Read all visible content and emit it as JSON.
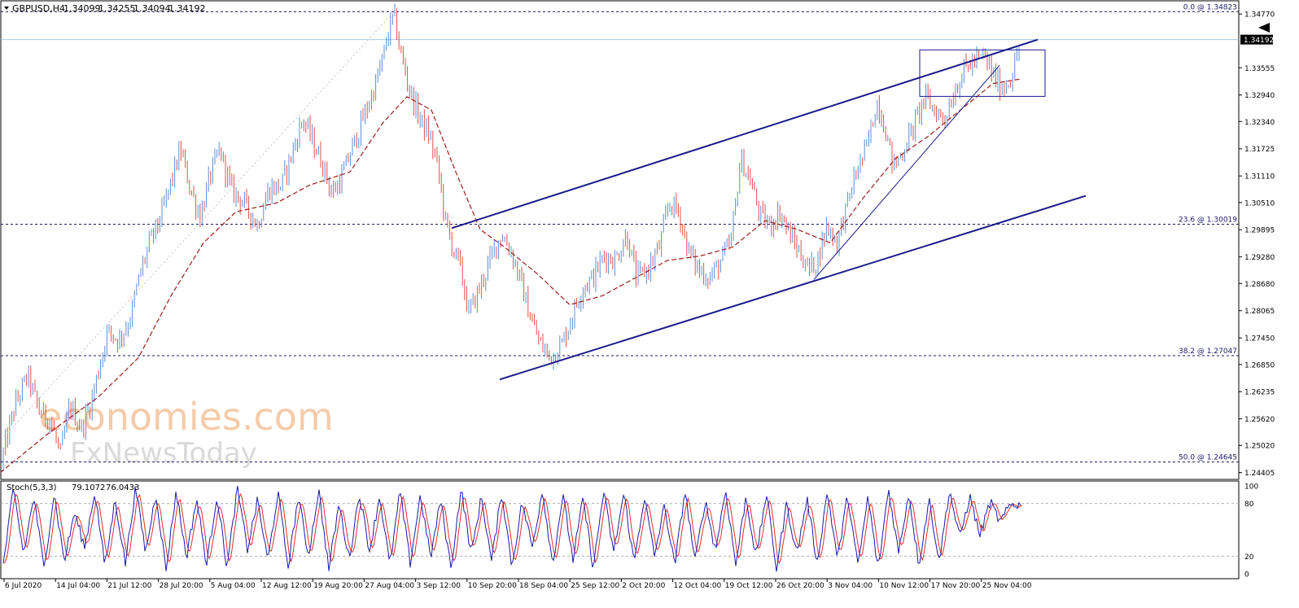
{
  "header": {
    "symbol": "GBPUSD,H4",
    "open": "1.34099",
    "high": "1.34255",
    "low": "1.34094",
    "close": "1.34192"
  },
  "indicator": {
    "name": "Stoch(5,3,3)",
    "k_value": "79.1072",
    "d_value": "76.0433",
    "levels": [
      "100",
      "80",
      "20",
      "0"
    ]
  },
  "watermark": {
    "line1": "economies.com",
    "line2": "FxNewsToday"
  },
  "colors": {
    "bull_candle": "#5b8fd6",
    "bear_candle": "#e0504f",
    "moving_average": "#9c1c1c",
    "trend_lines": "#1a1a8c",
    "fib_levels": "#1a1a66",
    "stoch_k": "#1a1aa8",
    "stoch_d": "#e03030",
    "price_marker_bg": "#000000"
  },
  "chart_data": {
    "type": "candlestick",
    "title": "GBPUSD,H4",
    "ylim": [
      1.2427,
      1.3505
    ],
    "y_ticks": [
      "1.34770",
      "1.34192",
      "1.33555",
      "1.32940",
      "1.32340",
      "1.31725",
      "1.31110",
      "1.30510",
      "1.29895",
      "1.29280",
      "1.28680",
      "1.28065",
      "1.27450",
      "1.26850",
      "1.26235",
      "1.25620",
      "1.25020",
      "1.24405"
    ],
    "current_price": "1.34192",
    "x_ticks": [
      "6 Jul 2020",
      "14 Jul 04:00",
      "21 Jul 12:00",
      "28 Jul 20:00",
      "5 Aug 04:00",
      "12 Aug 12:00",
      "19 Aug 20:00",
      "27 Aug 04:00",
      "3 Sep 12:00",
      "10 Sep 20:00",
      "18 Sep 04:00",
      "25 Sep 12:00",
      "2 Oct 20:00",
      "12 Oct 04:00",
      "19 Oct 12:00",
      "26 Oct 20:00",
      "3 Nov 04:00",
      "10 Nov 12:00",
      "17 Nov 20:00",
      "25 Nov 04:00"
    ],
    "price_path": [
      [
        0,
        1.2455
      ],
      [
        18,
        1.259
      ],
      [
        34,
        1.266
      ],
      [
        48,
        1.258
      ],
      [
        62,
        1.256
      ],
      [
        74,
        1.248
      ],
      [
        86,
        1.259
      ],
      [
        100,
        1.254
      ],
      [
        112,
        1.26
      ],
      [
        122,
        1.268
      ],
      [
        132,
        1.276
      ],
      [
        146,
        1.274
      ],
      [
        160,
        1.279
      ],
      [
        172,
        1.289
      ],
      [
        184,
        1.296
      ],
      [
        198,
        1.302
      ],
      [
        212,
        1.311
      ],
      [
        222,
        1.317
      ],
      [
        234,
        1.308
      ],
      [
        246,
        1.302
      ],
      [
        258,
        1.311
      ],
      [
        270,
        1.317
      ],
      [
        284,
        1.308
      ],
      [
        300,
        1.305
      ],
      [
        316,
        1.3
      ],
      [
        330,
        1.308
      ],
      [
        346,
        1.309
      ],
      [
        360,
        1.317
      ],
      [
        372,
        1.324
      ],
      [
        384,
        1.319
      ],
      [
        396,
        1.314
      ],
      [
        408,
        1.307
      ],
      [
        420,
        1.311
      ],
      [
        432,
        1.317
      ],
      [
        446,
        1.324
      ],
      [
        458,
        1.33
      ],
      [
        468,
        1.336
      ],
      [
        478,
        1.344
      ],
      [
        484,
        1.3475
      ],
      [
        492,
        1.339
      ],
      [
        504,
        1.33
      ],
      [
        516,
        1.324
      ],
      [
        528,
        1.32
      ],
      [
        538,
        1.313
      ],
      [
        548,
        1.3
      ],
      [
        556,
        1.295
      ],
      [
        566,
        1.29
      ],
      [
        576,
        1.28
      ],
      [
        590,
        1.286
      ],
      [
        604,
        1.293
      ],
      [
        616,
        1.298
      ],
      [
        628,
        1.294
      ],
      [
        640,
        1.287
      ],
      [
        652,
        1.279
      ],
      [
        664,
        1.273
      ],
      [
        676,
        1.27
      ],
      [
        690,
        1.273
      ],
      [
        704,
        1.28
      ],
      [
        716,
        1.286
      ],
      [
        728,
        1.288
      ],
      [
        742,
        1.293
      ],
      [
        756,
        1.292
      ],
      [
        770,
        1.298
      ],
      [
        782,
        1.288
      ],
      [
        796,
        1.29
      ],
      [
        810,
        1.295
      ],
      [
        822,
        1.305
      ],
      [
        834,
        1.303
      ],
      [
        846,
        1.294
      ],
      [
        858,
        1.29
      ],
      [
        872,
        1.288
      ],
      [
        886,
        1.292
      ],
      [
        898,
        1.296
      ],
      [
        910,
        1.315
      ],
      [
        922,
        1.31
      ],
      [
        934,
        1.302
      ],
      [
        946,
        1.3
      ],
      [
        958,
        1.303
      ],
      [
        970,
        1.298
      ],
      [
        982,
        1.294
      ],
      [
        994,
        1.29
      ],
      [
        1004,
        1.292
      ],
      [
        1016,
        1.3
      ],
      [
        1028,
        1.296
      ],
      [
        1040,
        1.304
      ],
      [
        1052,
        1.312
      ],
      [
        1064,
        1.317
      ],
      [
        1078,
        1.328
      ],
      [
        1086,
        1.323
      ],
      [
        1098,
        1.313
      ],
      [
        1110,
        1.317
      ],
      [
        1124,
        1.323
      ],
      [
        1136,
        1.329
      ],
      [
        1148,
        1.326
      ],
      [
        1160,
        1.324
      ],
      [
        1172,
        1.33
      ],
      [
        1184,
        1.335
      ],
      [
        1196,
        1.337
      ],
      [
        1210,
        1.338
      ],
      [
        1222,
        1.333
      ],
      [
        1232,
        1.331
      ],
      [
        1244,
        1.334
      ],
      [
        1254,
        1.3419
      ]
    ],
    "moving_average_path": [
      [
        0,
        1.244
      ],
      [
        60,
        1.253
      ],
      [
        120,
        1.261
      ],
      [
        170,
        1.27
      ],
      [
        210,
        1.284
      ],
      [
        250,
        1.296
      ],
      [
        290,
        1.303
      ],
      [
        340,
        1.305
      ],
      [
        380,
        1.309
      ],
      [
        430,
        1.312
      ],
      [
        470,
        1.323
      ],
      [
        500,
        1.329
      ],
      [
        530,
        1.326
      ],
      [
        560,
        1.312
      ],
      [
        590,
        1.299
      ],
      [
        620,
        1.295
      ],
      [
        660,
        1.289
      ],
      [
        700,
        1.282
      ],
      [
        740,
        1.284
      ],
      [
        780,
        1.288
      ],
      [
        820,
        1.292
      ],
      [
        860,
        1.293
      ],
      [
        900,
        1.295
      ],
      [
        940,
        1.301
      ],
      [
        980,
        1.299
      ],
      [
        1020,
        1.296
      ],
      [
        1060,
        1.306
      ],
      [
        1100,
        1.315
      ],
      [
        1140,
        1.32
      ],
      [
        1180,
        1.326
      ],
      [
        1220,
        1.332
      ],
      [
        1254,
        1.333
      ]
    ],
    "fibonacci_levels": [
      {
        "label": "0.0 @ 1.34823",
        "price": 1.34823
      },
      {
        "label": "23.6 @ 1.30019",
        "price": 1.30019
      },
      {
        "label": "38.2 @ 1.27047",
        "price": 1.27047
      },
      {
        "label": "50.0 @ 1.24645",
        "price": 1.24645
      }
    ],
    "trend_lines": [
      {
        "role": "channel-upper",
        "x1": 555,
        "p1": 1.2993,
        "x2": 1275,
        "p2": 1.3419
      },
      {
        "role": "channel-lower",
        "x1": 614,
        "p1": 1.2651,
        "x2": 1334,
        "p2": 1.3066
      },
      {
        "role": "rising-support",
        "x1": 1000,
        "p1": 1.2877,
        "x2": 1228,
        "p2": 1.3361
      },
      {
        "role": "fib-guide",
        "x1": 5,
        "p1": 1.2522,
        "x2": 484,
        "p2": 1.3482
      }
    ],
    "consolidation_box": {
      "x1": 1130,
      "x2": 1284,
      "p_top": 1.3396,
      "p_bottom": 1.3291
    },
    "stochastic": {
      "ylim": [
        0,
        100
      ],
      "overbought": 80,
      "oversold": 20,
      "cycle_peaks": [
        96,
        88,
        92,
        70,
        94,
        85,
        98,
        92,
        95,
        86,
        90,
        97,
        84,
        93,
        88,
        96,
        80,
        92,
        89,
        94,
        90,
        85,
        97,
        88,
        93,
        82,
        96,
        90,
        86,
        94,
        92,
        88,
        78,
        95,
        84,
        96,
        88,
        92,
        80,
        86,
        94,
        90,
        88,
        97,
        92,
        85,
        96,
        88,
        82,
        79
      ],
      "cycle_troughs": [
        10,
        22,
        6,
        14,
        30,
        8,
        12,
        24,
        4,
        18,
        10,
        6,
        28,
        14,
        8,
        20,
        5,
        16,
        26,
        9,
        12,
        18,
        6,
        22,
        14,
        8,
        30,
        10,
        16,
        6,
        24,
        12,
        20,
        8,
        14,
        26,
        10,
        18,
        6,
        22,
        12,
        16,
        8,
        4,
        24,
        10,
        14,
        40,
        44,
        58
      ]
    }
  }
}
